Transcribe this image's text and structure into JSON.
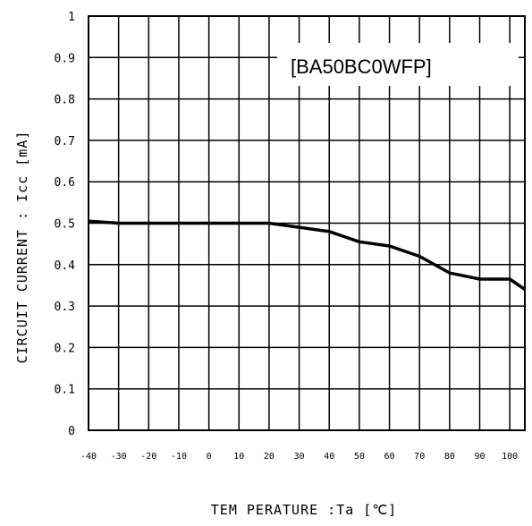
{
  "chart_data": {
    "type": "line",
    "title": "",
    "annotation": "[BA50BC0WFP]",
    "xlabel": "TEM PERATURE :Ta [℃]",
    "ylabel": "CIRCUIT CURRENT : Icc [mA]",
    "xlim": [
      -40,
      105
    ],
    "ylim": [
      0,
      1
    ],
    "xticks": [
      -40,
      -30,
      -20,
      -10,
      0,
      10,
      20,
      30,
      40,
      50,
      60,
      70,
      80,
      90,
      100
    ],
    "xtick_labels": [
      "-40",
      "-30",
      "-20",
      "-10",
      "0",
      "10",
      "20",
      "30",
      "40",
      "50",
      "60",
      "70",
      "80",
      "90",
      "100"
    ],
    "yticks": [
      0,
      0.1,
      0.2,
      0.3,
      0.4,
      0.5,
      0.6,
      0.7,
      0.8,
      0.9,
      1
    ],
    "ytick_labels": [
      "0",
      "0.1",
      "0.2",
      "0.3",
      "0.4",
      "0.5",
      "0.6",
      "0.7",
      "0.8",
      "0.9",
      "1"
    ],
    "grid": true,
    "series": [
      {
        "x": [
          -40,
          -30,
          -20,
          -10,
          0,
          10,
          20,
          30,
          40,
          50,
          60,
          70,
          80,
          90,
          100,
          105
        ],
        "y": [
          0.505,
          0.5,
          0.5,
          0.5,
          0.5,
          0.5,
          0.5,
          0.49,
          0.48,
          0.455,
          0.445,
          0.42,
          0.38,
          0.365,
          0.365,
          0.34
        ]
      }
    ]
  }
}
